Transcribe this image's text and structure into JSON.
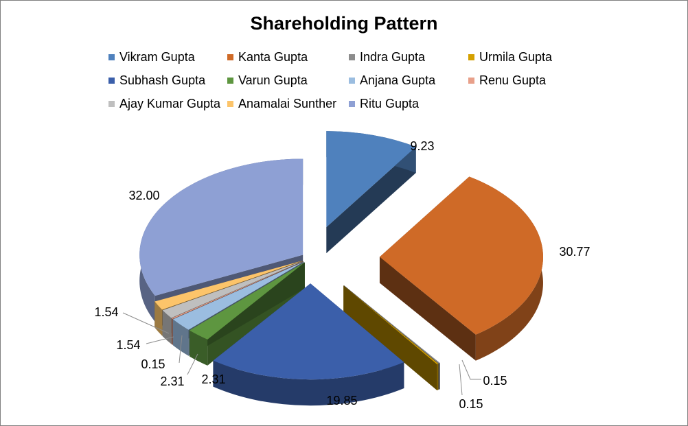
{
  "chart_data": {
    "type": "pie",
    "style": "3d-exploded",
    "title": "Shareholding Pattern",
    "legend_position": "top",
    "slices": [
      {
        "name": "Vikram Gupta",
        "value": 9.23,
        "label": "9.23",
        "color": "#4f81bd"
      },
      {
        "name": "Kanta Gupta",
        "value": 30.77,
        "label": "30.77",
        "color": "#cf6a27"
      },
      {
        "name": "Indra Gupta",
        "value": 0.15,
        "label": "0.15",
        "color": "#8c8c8c"
      },
      {
        "name": "Urmila Gupta",
        "value": 0.15,
        "label": "0.15",
        "color": "#d4a000"
      },
      {
        "name": "Subhash Gupta",
        "value": 19.85,
        "label": "19.85",
        "color": "#3b5faa"
      },
      {
        "name": "Varun Gupta",
        "value": 2.31,
        "label": "2.31",
        "color": "#5e9640"
      },
      {
        "name": "Anjana Gupta",
        "value": 2.31,
        "label": "2.31",
        "color": "#9bbde0"
      },
      {
        "name": "Renu Gupta",
        "value": 0.15,
        "label": "0.15",
        "color": "#e8a08a"
      },
      {
        "name": "Ajay Kumar Gupta",
        "value": 1.54,
        "label": "1.54",
        "color": "#bfbfbf"
      },
      {
        "name": "Anamalai Sunther",
        "value": 1.54,
        "label": "1.54",
        "color": "#fcc46a"
      },
      {
        "name": "Ritu Gupta",
        "value": 32.0,
        "label": "32.00",
        "color": "#8ea0d4"
      }
    ]
  }
}
